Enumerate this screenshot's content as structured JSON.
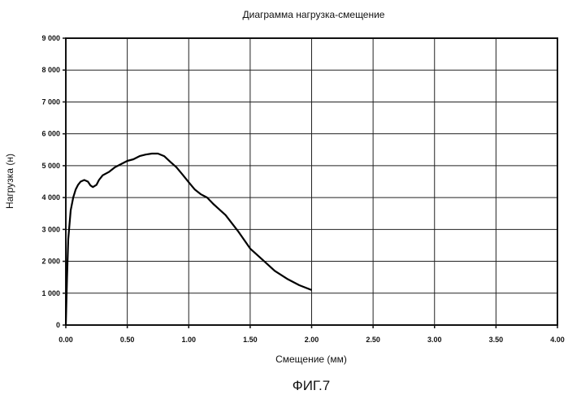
{
  "chart_data": {
    "type": "line",
    "title": "Диаграмма нагрузка-смещение",
    "xlabel": "Смещение (мм)",
    "ylabel": "Нагрузка (н)",
    "xlim": [
      0,
      4
    ],
    "ylim": [
      0,
      9000
    ],
    "x_ticks": [
      0,
      0.5,
      1,
      1.5,
      2,
      2.5,
      3,
      3.5,
      4
    ],
    "x_tick_labels": [
      "0.00",
      "0.50",
      "1.00",
      "1.50",
      "2.00",
      "2.50",
      "3.00",
      "3.50",
      "4.00"
    ],
    "y_ticks": [
      0,
      1000,
      2000,
      3000,
      4000,
      5000,
      6000,
      7000,
      8000,
      9000
    ],
    "y_tick_labels": [
      "0",
      "1 000",
      "2 000",
      "3 000",
      "4 000",
      "5 000",
      "6 000",
      "7 000",
      "8 000",
      "9 000"
    ],
    "grid": true,
    "series": [
      {
        "x": [
          0.0,
          0.01,
          0.02,
          0.04,
          0.06,
          0.08,
          0.1,
          0.12,
          0.15,
          0.18,
          0.2,
          0.22,
          0.25,
          0.27,
          0.3,
          0.35,
          0.4,
          0.45,
          0.5,
          0.55,
          0.6,
          0.65,
          0.7,
          0.75,
          0.8,
          0.85,
          0.9,
          0.95,
          1.0,
          1.05,
          1.1,
          1.15,
          1.2,
          1.3,
          1.4,
          1.5,
          1.6,
          1.7,
          1.8,
          1.9,
          2.0
        ],
        "y": [
          0,
          1500,
          2700,
          3600,
          4000,
          4250,
          4400,
          4500,
          4550,
          4500,
          4380,
          4330,
          4400,
          4550,
          4700,
          4800,
          4950,
          5050,
          5150,
          5200,
          5300,
          5350,
          5380,
          5380,
          5300,
          5120,
          4950,
          4720,
          4480,
          4250,
          4100,
          4000,
          3800,
          3450,
          2950,
          2400,
          2050,
          1700,
          1450,
          1250,
          1100
        ]
      }
    ]
  },
  "figure_label": "ФИГ.7"
}
